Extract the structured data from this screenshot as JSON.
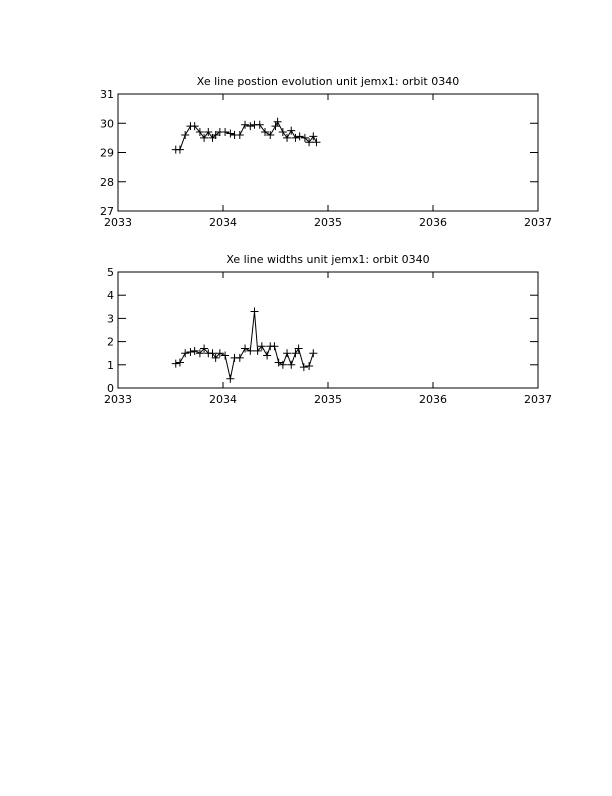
{
  "chart_data": [
    {
      "type": "line",
      "title": "Xe line postion evolution unit jemx1: orbit 0340",
      "xlim": [
        2033,
        2037
      ],
      "xticks": [
        2033,
        2034,
        2035,
        2036,
        2037
      ],
      "ylim": [
        27,
        31
      ],
      "yticks": [
        27,
        28,
        29,
        30,
        31
      ],
      "series": [
        {
          "color": "#000000",
          "x": [
            2033.55,
            2033.59,
            2033.64,
            2033.69,
            2033.73,
            2033.78,
            2033.82,
            2033.86,
            2033.9,
            2033.93,
            2033.97,
            2034.02,
            2034.07,
            2034.11,
            2034.16,
            2034.21,
            2034.26,
            2034.3,
            2034.35,
            2034.4,
            2034.45,
            2034.5,
            2034.52,
            2034.57,
            2034.61,
            2034.65,
            2034.69,
            2034.73,
            2034.78,
            2034.82,
            2034.86,
            2034.89
          ],
          "values": [
            29.1,
            29.1,
            29.6,
            29.9,
            29.9,
            29.7,
            29.5,
            29.7,
            29.5,
            29.6,
            29.7,
            29.7,
            29.65,
            29.6,
            29.6,
            29.95,
            29.9,
            29.95,
            29.95,
            29.7,
            29.6,
            29.9,
            30.05,
            29.7,
            29.5,
            29.75,
            29.5,
            29.55,
            29.5,
            29.35,
            29.55,
            29.35
          ]
        }
      ]
    },
    {
      "type": "line",
      "title": "Xe line widths unit jemx1: orbit 0340",
      "xlim": [
        2033,
        2037
      ],
      "xticks": [
        2033,
        2034,
        2035,
        2036,
        2037
      ],
      "ylim": [
        0,
        5
      ],
      "yticks": [
        0,
        1,
        2,
        3,
        4,
        5
      ],
      "series": [
        {
          "color": "#000000",
          "x": [
            2033.55,
            2033.59,
            2033.64,
            2033.69,
            2033.73,
            2033.78,
            2033.82,
            2033.86,
            2033.9,
            2033.93,
            2033.97,
            2034.02,
            2034.07,
            2034.11,
            2034.16,
            2034.21,
            2034.26,
            2034.3,
            2034.33,
            2034.37,
            2034.42,
            2034.45,
            2034.49,
            2034.53,
            2034.57,
            2034.61,
            2034.65,
            2034.69,
            2034.72,
            2034.77,
            2034.82,
            2034.86
          ],
          "values": [
            1.05,
            1.1,
            1.5,
            1.55,
            1.6,
            1.5,
            1.7,
            1.5,
            1.5,
            1.3,
            1.5,
            1.4,
            0.4,
            1.3,
            1.3,
            1.7,
            1.6,
            3.3,
            1.6,
            1.8,
            1.4,
            1.8,
            1.8,
            1.1,
            1.0,
            1.5,
            1.0,
            1.5,
            1.7,
            0.9,
            0.95,
            1.5
          ]
        }
      ]
    }
  ]
}
